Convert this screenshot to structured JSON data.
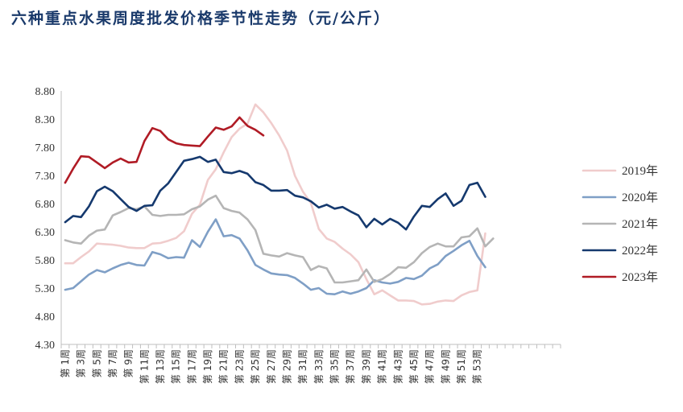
{
  "title": "六种重点水果周度批发价格季节性走势（元/公斤）",
  "chart_data": {
    "type": "line",
    "title": "六种重点水果周度批发价格季节性走势（元/公斤）",
    "xlabel": "",
    "ylabel": "",
    "ylim": [
      4.3,
      8.8
    ],
    "yticks": [
      "8.80",
      "8.30",
      "7.80",
      "7.30",
      "6.80",
      "6.30",
      "5.80",
      "5.30",
      "4.80",
      "4.30"
    ],
    "x_categories": [
      "第1周",
      "第2周",
      "第3周",
      "第4周",
      "第5周",
      "第6周",
      "第7周",
      "第8周",
      "第9周",
      "第10周",
      "第11周",
      "第12周",
      "第13周",
      "第14周",
      "第15周",
      "第16周",
      "第17周",
      "第18周",
      "第19周",
      "第20周",
      "第21周",
      "第22周",
      "第23周",
      "第24周",
      "第25周",
      "第26周",
      "第27周",
      "第28周",
      "第29周",
      "第30周",
      "第31周",
      "第32周",
      "第33周",
      "第34周",
      "第35周",
      "第36周",
      "第37周",
      "第38周",
      "第39周",
      "第40周",
      "第41周",
      "第42周",
      "第43周",
      "第44周",
      "第45周",
      "第46周",
      "第47周",
      "第48周",
      "第49周",
      "第50周",
      "第51周",
      "第52周",
      "第53周",
      "第54周",
      "第55周",
      "第56周",
      "第57周",
      "第58周",
      "第59周",
      "第60周",
      "第61周",
      "第62周",
      "第63周"
    ],
    "x_tick_labels": [
      "第 1周",
      "第 3周",
      "第 5周",
      "第 7周",
      "第 9周",
      "第 11周",
      "第 13周",
      "第 15周",
      "第 17周",
      "第 19周",
      "第 21周",
      "第 23周",
      "第 25周",
      "第 27周",
      "第 29周",
      "第 31周",
      "第 33周",
      "第 35周",
      "第 37周",
      "第 39周",
      "第 41周",
      "第 43周",
      "第 45周",
      "第 47周",
      "第 49周",
      "第 51周",
      "第 53周"
    ],
    "grid": false,
    "legend_position": "right",
    "series": [
      {
        "name": "2019年",
        "color": "#f0cccc",
        "values": [
          5.74,
          5.74,
          5.85,
          5.95,
          6.09,
          6.08,
          6.07,
          6.05,
          6.02,
          6.01,
          6.01,
          6.09,
          6.1,
          6.14,
          6.19,
          6.31,
          6.62,
          6.78,
          7.22,
          7.41,
          7.71,
          7.98,
          8.13,
          8.22,
          8.56,
          8.42,
          8.23,
          8.01,
          7.74,
          7.29,
          7.01,
          6.81,
          6.35,
          6.18,
          6.12,
          6.0,
          5.9,
          5.76,
          5.46,
          5.19,
          5.26,
          5.17,
          5.08,
          5.08,
          5.07,
          5.01,
          5.02,
          5.06,
          5.08,
          5.07,
          5.17,
          5.23,
          5.26,
          6.27
        ]
      },
      {
        "name": "2020年",
        "color": "#7f9fc6",
        "values": [
          5.27,
          5.3,
          5.42,
          5.54,
          5.62,
          5.58,
          5.65,
          5.71,
          5.75,
          5.71,
          5.7,
          5.94,
          5.9,
          5.83,
          5.85,
          5.84,
          6.15,
          6.03,
          6.3,
          6.52,
          6.22,
          6.24,
          6.18,
          5.97,
          5.71,
          5.63,
          5.56,
          5.54,
          5.53,
          5.48,
          5.38,
          5.27,
          5.3,
          5.2,
          5.19,
          5.24,
          5.2,
          5.24,
          5.3,
          5.44,
          5.4,
          5.38,
          5.41,
          5.48,
          5.46,
          5.52,
          5.65,
          5.72,
          5.87,
          5.96,
          6.06,
          6.14,
          5.87,
          5.67
        ]
      },
      {
        "name": "2021年",
        "color": "#b5b5b5",
        "values": [
          6.15,
          6.11,
          6.09,
          6.23,
          6.32,
          6.34,
          6.59,
          6.65,
          6.72,
          6.7,
          6.75,
          6.6,
          6.58,
          6.6,
          6.6,
          6.61,
          6.7,
          6.75,
          6.87,
          6.94,
          6.72,
          6.67,
          6.64,
          6.52,
          6.33,
          5.91,
          5.88,
          5.86,
          5.92,
          5.88,
          5.85,
          5.62,
          5.69,
          5.65,
          5.4,
          5.4,
          5.42,
          5.44,
          5.63,
          5.41,
          5.46,
          5.55,
          5.67,
          5.66,
          5.76,
          5.92,
          6.03,
          6.09,
          6.04,
          6.04,
          6.2,
          6.22,
          6.36,
          6.04,
          6.18
        ]
      },
      {
        "name": "2022年",
        "color": "#15396e",
        "values": [
          6.47,
          6.58,
          6.56,
          6.75,
          7.02,
          7.1,
          7.02,
          6.88,
          6.74,
          6.67,
          6.76,
          6.77,
          7.03,
          7.16,
          7.36,
          7.56,
          7.59,
          7.63,
          7.54,
          7.58,
          7.36,
          7.34,
          7.38,
          7.33,
          7.18,
          7.13,
          7.03,
          7.03,
          7.04,
          6.94,
          6.91,
          6.84,
          6.73,
          6.78,
          6.71,
          6.74,
          6.66,
          6.59,
          6.38,
          6.53,
          6.43,
          6.53,
          6.46,
          6.34,
          6.57,
          6.76,
          6.74,
          6.88,
          6.98,
          6.76,
          6.85,
          7.13,
          7.17,
          6.92
        ]
      },
      {
        "name": "2023年",
        "color": "#b01b25",
        "values": [
          7.17,
          7.42,
          7.64,
          7.63,
          7.53,
          7.43,
          7.53,
          7.6,
          7.53,
          7.54,
          7.91,
          8.14,
          8.09,
          7.94,
          7.87,
          7.84,
          7.83,
          7.82,
          7.99,
          8.15,
          8.11,
          8.17,
          8.33,
          8.18,
          8.11,
          8.01
        ]
      }
    ]
  }
}
